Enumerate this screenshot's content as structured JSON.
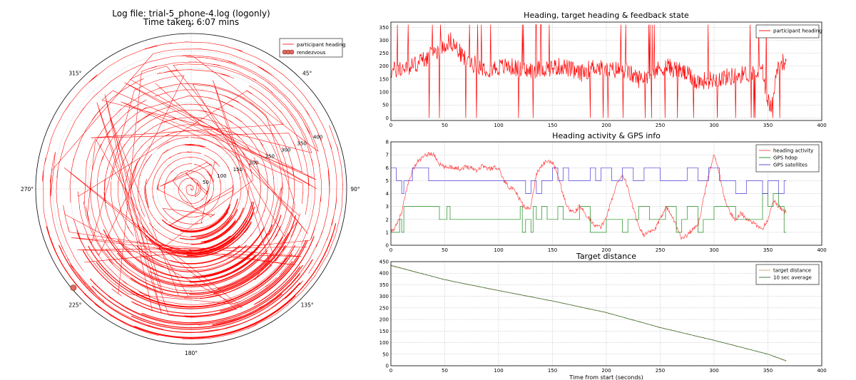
{
  "figure": {
    "header_line1": "Log file: trial-5_phone-4.log (logonly)",
    "header_line2": "Time taken: 6:07 mins"
  },
  "colors": {
    "heading": "#ff0000",
    "activity": "#ff4444",
    "hdop": "#1a8a1a",
    "satellites": "#4a3cd6",
    "distance_raw": "#d2a06e",
    "distance_avg": "#2f6b2f",
    "rendezvous_fill": "#e06a60",
    "grid": "#b0b0b0"
  },
  "chart_data": [
    {
      "type": "polar_spiral",
      "angle_tick_labels": [
        "0°",
        "45°",
        "90°",
        "135°",
        "180°",
        "225°",
        "270°",
        "315°"
      ],
      "radial_tick_values": [
        50,
        100,
        150,
        200,
        250,
        300,
        350,
        400
      ],
      "rlim": [
        0,
        450
      ],
      "legend": [
        "participant heading",
        "rendezvous"
      ],
      "legend_position": "top-right",
      "rendezvous": {
        "angle_deg": 230,
        "radius": 445
      },
      "spiral": {
        "radius_start": 440,
        "radius_end": 0,
        "duration_seconds": 367,
        "mean_heading_deg": 180
      }
    },
    {
      "type": "line",
      "title": "Heading, target heading & feedback state",
      "xlim": [
        0,
        400
      ],
      "ylim": [
        -10,
        370
      ],
      "x_ticks": [
        0,
        50,
        100,
        150,
        200,
        250,
        300,
        350,
        400
      ],
      "y_ticks": [
        0,
        50,
        100,
        150,
        200,
        250,
        300,
        350
      ],
      "legend": [
        "participant heading"
      ],
      "legend_position": "top-right",
      "grid": true,
      "series": [
        {
          "name": "participant heading",
          "keyframes_x": [
            0,
            20,
            40,
            55,
            70,
            90,
            110,
            125,
            140,
            160,
            175,
            190,
            200,
            215,
            230,
            245,
            255,
            270,
            285,
            300,
            315,
            330,
            345,
            352,
            360,
            367
          ],
          "keyframes_y": [
            180,
            200,
            250,
            300,
            220,
            190,
            200,
            180,
            190,
            200,
            170,
            200,
            180,
            190,
            150,
            180,
            200,
            180,
            140,
            150,
            160,
            170,
            180,
            30,
            210,
            220
          ]
        }
      ]
    },
    {
      "type": "line",
      "title": "Heading activity & GPS info",
      "xlim": [
        0,
        400
      ],
      "ylim": [
        0,
        8
      ],
      "x_ticks": [
        0,
        50,
        100,
        150,
        200,
        250,
        300,
        350,
        400
      ],
      "y_ticks": [
        0,
        1,
        2,
        3,
        4,
        5,
        6,
        7,
        8
      ],
      "legend": [
        "heading activity",
        "GPS hdop",
        "GPS satellites"
      ],
      "legend_position": "top-right",
      "grid": true,
      "series": [
        {
          "name": "heading activity",
          "x": [
            0,
            5,
            10,
            15,
            20,
            25,
            30,
            35,
            40,
            45,
            50,
            55,
            60,
            65,
            70,
            75,
            80,
            85,
            90,
            95,
            100,
            105,
            110,
            115,
            120,
            125,
            130,
            135,
            140,
            145,
            150,
            155,
            160,
            165,
            170,
            175,
            180,
            185,
            190,
            195,
            200,
            205,
            210,
            215,
            220,
            225,
            230,
            235,
            240,
            245,
            250,
            255,
            260,
            265,
            270,
            275,
            280,
            285,
            290,
            295,
            300,
            305,
            310,
            315,
            320,
            325,
            330,
            335,
            340,
            345,
            350,
            355,
            360,
            367
          ],
          "y": [
            1.0,
            1.5,
            2.5,
            4.5,
            5.8,
            6.5,
            6.8,
            7.1,
            7.0,
            6.3,
            6.0,
            6.1,
            6.0,
            5.9,
            6.1,
            6.0,
            5.8,
            6.2,
            5.9,
            6.0,
            6.0,
            5.0,
            4.5,
            4.2,
            3.5,
            2.8,
            3.0,
            5.5,
            6.2,
            6.5,
            6.4,
            5.5,
            3.8,
            2.8,
            2.5,
            3.0,
            2.5,
            2.0,
            1.5,
            1.4,
            2.2,
            3.5,
            4.8,
            5.5,
            4.5,
            2.8,
            1.5,
            0.8,
            1.0,
            1.2,
            2.0,
            3.0,
            2.5,
            1.5,
            0.5,
            0.8,
            1.2,
            1.5,
            3.5,
            5.5,
            7.0,
            5.5,
            3.5,
            2.5,
            2.0,
            2.5,
            2.0,
            1.8,
            1.5,
            1.3,
            2.0,
            3.5,
            3.0,
            2.5
          ]
        },
        {
          "name": "GPS hdop",
          "x": [
            0,
            8,
            10,
            12,
            45,
            52,
            55,
            120,
            122,
            125,
            130,
            132,
            135,
            140,
            145,
            155,
            160,
            175,
            185,
            200,
            215,
            220,
            230,
            240,
            255,
            265,
            270,
            275,
            285,
            290,
            300,
            320,
            345,
            350,
            355,
            360,
            365,
            367
          ],
          "y": [
            1,
            2,
            1,
            3,
            2,
            3,
            2,
            3,
            1,
            2,
            1,
            3,
            2,
            3,
            2,
            3,
            2,
            3,
            1,
            2,
            1,
            2,
            3,
            2,
            3,
            1,
            2,
            3,
            1,
            2,
            3,
            2,
            4,
            3,
            4,
            3,
            1,
            1
          ]
        },
        {
          "name": "GPS satellites",
          "x": [
            0,
            5,
            10,
            12,
            20,
            35,
            55,
            125,
            130,
            135,
            140,
            150,
            155,
            160,
            165,
            175,
            185,
            190,
            195,
            205,
            215,
            225,
            235,
            250,
            270,
            275,
            285,
            295,
            305,
            320,
            330,
            345,
            350,
            360,
            365,
            367
          ],
          "y": [
            6,
            5,
            4,
            5,
            6,
            5,
            5,
            4,
            5,
            4,
            5,
            6,
            5,
            6,
            5,
            5,
            6,
            5,
            6,
            5,
            6,
            5,
            6,
            5,
            5,
            6,
            5,
            6,
            5,
            4,
            5,
            4,
            5,
            4,
            5,
            5
          ]
        }
      ]
    },
    {
      "type": "line",
      "title": "Target distance",
      "xlabel": "Time from start (seconds)",
      "xlim": [
        0,
        400
      ],
      "ylim": [
        0,
        450
      ],
      "x_ticks": [
        0,
        50,
        100,
        150,
        200,
        250,
        300,
        350,
        400
      ],
      "y_ticks": [
        0,
        50,
        100,
        150,
        200,
        250,
        300,
        350,
        400,
        450
      ],
      "legend": [
        "target distance",
        "10 sec average"
      ],
      "legend_position": "top-right",
      "grid": true,
      "series": [
        {
          "name": "target distance",
          "x": [
            0,
            10,
            50,
            100,
            150,
            200,
            250,
            300,
            350,
            367
          ],
          "y": [
            435,
            422,
            372,
            325,
            280,
            230,
            165,
            110,
            50,
            20
          ]
        },
        {
          "name": "10 sec average",
          "x": [
            0,
            10,
            50,
            100,
            150,
            200,
            250,
            300,
            350,
            367
          ],
          "y": [
            433,
            421,
            372,
            325,
            280,
            230,
            165,
            110,
            50,
            22
          ]
        }
      ]
    }
  ]
}
